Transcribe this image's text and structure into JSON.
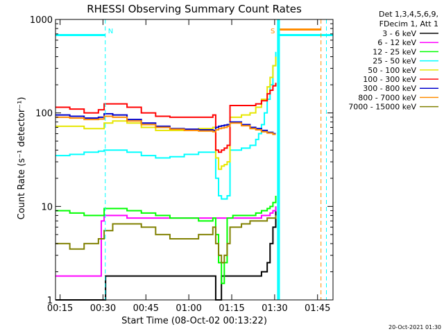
{
  "chart_data": {
    "type": "line",
    "title": "RHESSI Observing Summary Count Rates",
    "xlabel": "Start Time (08-Oct-02 00:13:22)",
    "ylabel": "Count Rate (s⁻¹ detector⁻¹)",
    "y_scale": "log",
    "ylim": [
      1,
      1000
    ],
    "xlim_minutes": [
      0,
      97
    ],
    "x_ticks": [
      {
        "label": "00:15",
        "t": 1.6
      },
      {
        "label": "00:30",
        "t": 16.6
      },
      {
        "label": "00:45",
        "t": 31.6
      },
      {
        "label": "01:00",
        "t": 46.6
      },
      {
        "label": "01:15",
        "t": 61.6
      },
      {
        "label": "01:30",
        "t": 76.6
      },
      {
        "label": "01:45",
        "t": 91.6
      }
    ],
    "y_ticks": [
      {
        "label": "1",
        "value": 1
      },
      {
        "label": "10",
        "value": 10
      },
      {
        "label": "100",
        "value": 100
      },
      {
        "label": "1000",
        "value": 1000
      }
    ],
    "legend_header": [
      "Det 1,3,4,5,6,9,",
      "FDecim 1, Att 1"
    ],
    "timestamp": "20-Oct-2021 01:30",
    "flag_bars": [
      {
        "name": "night",
        "color": "#00ffff",
        "y": 680,
        "segments": [
          [
            0,
            17.4
          ],
          [
            77.7,
            97
          ]
        ]
      },
      {
        "name": "saa",
        "color": "#ff8c00",
        "y": 780,
        "segments": [
          [
            78.2,
            92.8
          ]
        ]
      }
    ],
    "markers": [
      {
        "label": "N",
        "t": 17.4,
        "color": "#00ffff",
        "style": "dashed"
      },
      {
        "label": "S",
        "t": 77.7,
        "color": "#00ffff",
        "style": "solid"
      },
      {
        "label": "",
        "t": 78.2,
        "color": "#00ffff",
        "style": "solid"
      },
      {
        "label": "",
        "t": 92.8,
        "color": "#ff8c00",
        "style": "dashed"
      },
      {
        "label": "",
        "t": 94.7,
        "color": "#00ffff",
        "style": "dashed"
      }
    ],
    "series": [
      {
        "name": "3 - 6 keV",
        "color": "#000000",
        "t": [
          0,
          17,
          17.5,
          20,
          25,
          30,
          35,
          40,
          45,
          50,
          55,
          56,
          58,
          60,
          62,
          65,
          68,
          70,
          72,
          74,
          75,
          76,
          77
        ],
        "v": [
          1,
          1,
          1.8,
          1.8,
          1.8,
          1.8,
          1.8,
          1.8,
          1.8,
          1.8,
          1.8,
          1,
          1.8,
          1.8,
          1.8,
          1.8,
          1.8,
          1.8,
          2,
          2.5,
          4,
          6,
          10
        ]
      },
      {
        "name": "6 - 12 keV",
        "color": "#ff00ff",
        "t": [
          0,
          5,
          10,
          15,
          16,
          17,
          20,
          25,
          30,
          35,
          40,
          45,
          50,
          55,
          58,
          60,
          62,
          65,
          68,
          70,
          72,
          74,
          75,
          76,
          77
        ],
        "v": [
          1.8,
          1.8,
          1.8,
          1.8,
          7,
          8,
          8,
          7.5,
          7.5,
          7.5,
          7.5,
          7.5,
          7.5,
          7.5,
          7.5,
          7.5,
          7.5,
          7.5,
          7.5,
          7.5,
          8,
          8,
          8.5,
          9,
          10
        ]
      },
      {
        "name": "12 - 25 keV",
        "color": "#00ff00",
        "t": [
          0,
          5,
          10,
          15,
          17,
          20,
          25,
          30,
          35,
          40,
          45,
          50,
          55,
          56,
          57,
          58,
          59,
          60,
          61,
          62,
          65,
          68,
          70,
          72,
          74,
          75,
          76,
          77
        ],
        "v": [
          9,
          8.5,
          8,
          8,
          9.5,
          9.5,
          9,
          8.5,
          8,
          7.5,
          7.5,
          7,
          7.5,
          5,
          2.5,
          1.5,
          2.5,
          7.5,
          7.5,
          8,
          8,
          8,
          8.5,
          9,
          9.5,
          10,
          11,
          13
        ]
      },
      {
        "name": "25 - 50 keV",
        "color": "#00ffff",
        "t": [
          0,
          5,
          10,
          15,
          17,
          20,
          25,
          30,
          35,
          40,
          45,
          50,
          55,
          56,
          57,
          58,
          59,
          60,
          61,
          62,
          65,
          68,
          70,
          71,
          72,
          73,
          74,
          75,
          76,
          77
        ],
        "v": [
          35,
          36,
          38,
          39,
          40,
          40,
          38,
          35,
          33,
          34,
          36,
          38,
          38,
          20,
          13,
          12,
          12,
          13,
          40,
          40,
          42,
          45,
          52,
          60,
          75,
          100,
          140,
          200,
          320,
          450
        ]
      },
      {
        "name": "50 - 100 keV",
        "color": "#e6e600",
        "t": [
          0,
          5,
          10,
          15,
          17,
          20,
          25,
          30,
          35,
          40,
          45,
          50,
          55,
          56,
          57,
          58,
          59,
          60,
          61,
          62,
          65,
          68,
          70,
          72,
          74,
          75,
          76,
          77
        ],
        "v": [
          72,
          72,
          68,
          68,
          78,
          82,
          78,
          70,
          65,
          65,
          66,
          68,
          70,
          33,
          25,
          27,
          28,
          30,
          90,
          90,
          95,
          100,
          115,
          140,
          190,
          240,
          320,
          400
        ]
      },
      {
        "name": "100 - 300 keV",
        "color": "#ff0000",
        "t": [
          0,
          5,
          10,
          15,
          17,
          20,
          25,
          30,
          35,
          40,
          45,
          50,
          55,
          56,
          57,
          58,
          59,
          60,
          61,
          62,
          65,
          68,
          70,
          72,
          74,
          75,
          76,
          77
        ],
        "v": [
          115,
          110,
          100,
          108,
          125,
          125,
          115,
          100,
          92,
          90,
          90,
          90,
          95,
          40,
          38,
          40,
          42,
          45,
          120,
          120,
          120,
          120,
          125,
          135,
          160,
          175,
          195,
          210
        ]
      },
      {
        "name": "300 - 800 keV",
        "color": "#0000cc",
        "t": [
          0,
          5,
          10,
          15,
          17,
          20,
          25,
          30,
          35,
          40,
          45,
          50,
          55,
          56,
          57,
          58,
          59,
          60,
          61,
          62,
          65,
          68,
          70,
          72,
          74,
          76,
          77
        ],
        "v": [
          95,
          92,
          88,
          90,
          98,
          95,
          85,
          78,
          72,
          68,
          67,
          66,
          65,
          70,
          72,
          73,
          74,
          75,
          80,
          80,
          75,
          70,
          68,
          65,
          62,
          60,
          60
        ]
      },
      {
        "name": "800 - 7000 keV",
        "color": "#ff8c00",
        "t": [
          0,
          5,
          10,
          15,
          17,
          20,
          25,
          30,
          35,
          40,
          45,
          50,
          55,
          56,
          57,
          58,
          59,
          60,
          61,
          62,
          65,
          68,
          70,
          72,
          74,
          76,
          77
        ],
        "v": [
          90,
          88,
          85,
          86,
          92,
          90,
          82,
          75,
          70,
          67,
          65,
          64,
          63,
          66,
          68,
          69,
          70,
          72,
          78,
          78,
          73,
          68,
          66,
          63,
          61,
          59,
          59
        ]
      },
      {
        "name": "7000 - 15000 keV",
        "color": "#808000",
        "t": [
          0,
          5,
          10,
          15,
          17,
          20,
          25,
          30,
          35,
          40,
          45,
          50,
          55,
          56,
          57,
          58,
          59,
          60,
          61,
          62,
          65,
          68,
          70,
          72,
          74,
          76,
          77
        ],
        "v": [
          4,
          3.5,
          4,
          4.5,
          5.5,
          6.5,
          6.5,
          6,
          5,
          4.5,
          4.5,
          5,
          6,
          4,
          3,
          2.5,
          3,
          4,
          6,
          6,
          6.5,
          7,
          7,
          7,
          7.5,
          7.5,
          8
        ]
      }
    ]
  }
}
